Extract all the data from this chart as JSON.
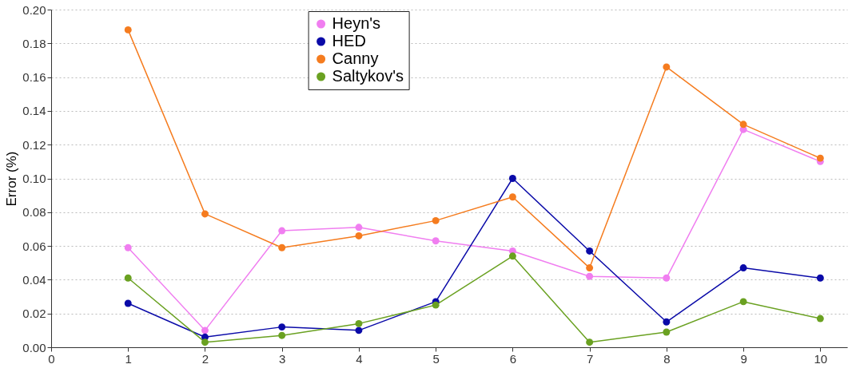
{
  "chart_data": {
    "type": "line",
    "ylabel": "Error (%)",
    "x": [
      1,
      2,
      3,
      4,
      5,
      6,
      7,
      8,
      9,
      10
    ],
    "series": [
      {
        "name": "Heyn's",
        "color": "#f07ef0",
        "values": [
          0.059,
          0.01,
          0.069,
          0.071,
          0.063,
          0.057,
          0.042,
          0.041,
          0.129,
          0.11
        ]
      },
      {
        "name": "HED",
        "color": "#0a0aa8",
        "values": [
          0.026,
          0.006,
          0.012,
          0.01,
          0.027,
          0.1,
          0.057,
          0.015,
          0.047,
          0.041
        ]
      },
      {
        "name": "Canny",
        "color": "#f57c1f",
        "values": [
          0.188,
          0.079,
          0.059,
          0.066,
          0.075,
          0.089,
          0.047,
          0.166,
          0.132,
          0.112
        ]
      },
      {
        "name": "Saltykov's",
        "color": "#6aa121",
        "values": [
          0.041,
          0.003,
          0.007,
          0.014,
          0.025,
          0.054,
          0.003,
          0.009,
          0.027,
          0.017
        ]
      }
    ],
    "xlim": [
      0,
      10.35
    ],
    "xticks": [
      0,
      1,
      2,
      3,
      4,
      5,
      6,
      7,
      8,
      9,
      10
    ],
    "ylim": [
      0,
      0.2
    ],
    "yticks": [
      {
        "value": 0,
        "label": "0.00"
      },
      {
        "value": 0.02,
        "label": "0.02"
      },
      {
        "value": 0.04,
        "label": "0.04"
      },
      {
        "value": 0.06,
        "label": "0.06"
      },
      {
        "value": 0.08,
        "label": "0.08"
      },
      {
        "value": 0.1,
        "label": "0.10"
      },
      {
        "value": 0.12,
        "label": "0.12"
      },
      {
        "value": 0.14,
        "label": "0.14"
      },
      {
        "value": 0.16,
        "label": "0.16"
      },
      {
        "value": 0.18,
        "label": "0.18"
      },
      {
        "value": 0.2,
        "label": "0.20"
      }
    ],
    "grid": "y",
    "legend": "top",
    "marker": "circle",
    "line_style": "solid"
  }
}
